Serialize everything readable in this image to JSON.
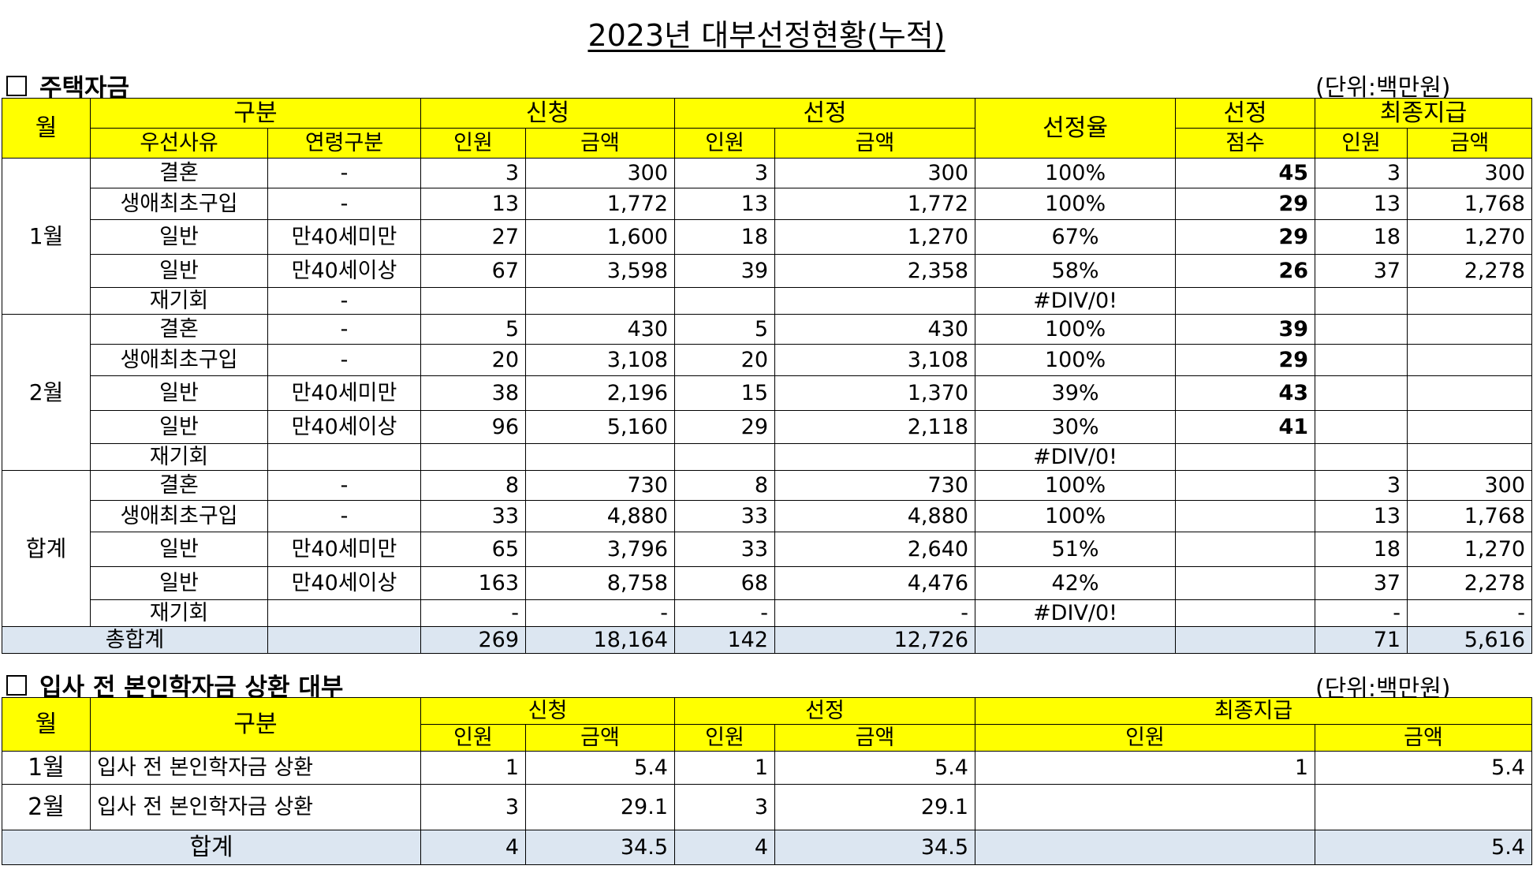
{
  "title": "2023년 대부선정현황(누적)",
  "section1": {
    "heading": "주택자금",
    "unit": "(단위:백만원)",
    "headers": {
      "month": "월",
      "category": "구분",
      "apply": "신청",
      "select": "선정",
      "rate": "선정율",
      "score_top": "선정",
      "final": "최종지급",
      "reason": "우선사유",
      "age": "연령구분",
      "people": "인원",
      "amount": "금액",
      "score_bottom": "점수"
    },
    "groups": [
      {
        "month": "1월",
        "rows": [
          {
            "reason": "결혼",
            "age": "-",
            "ap": "3",
            "aa": "300",
            "sp": "3",
            "sa": "300",
            "rate": "100%",
            "score": "45",
            "fp": "3",
            "fa": "300"
          },
          {
            "reason": "생애최초구입",
            "age": "-",
            "ap": "13",
            "aa": "1,772",
            "sp": "13",
            "sa": "1,772",
            "rate": "100%",
            "score": "29",
            "fp": "13",
            "fa": "1,768"
          },
          {
            "reason": "일반",
            "age": "만40세미만",
            "ap": "27",
            "aa": "1,600",
            "sp": "18",
            "sa": "1,270",
            "rate": "67%",
            "score": "29",
            "fp": "18",
            "fa": "1,270"
          },
          {
            "reason": "일반",
            "age": "만40세이상",
            "ap": "67",
            "aa": "3,598",
            "sp": "39",
            "sa": "2,358",
            "rate": "58%",
            "score": "26",
            "fp": "37",
            "fa": "2,278"
          },
          {
            "reason": "재기회",
            "age": "-",
            "ap": "",
            "aa": "",
            "sp": "",
            "sa": "",
            "rate": "#DIV/0!",
            "score": "",
            "fp": "",
            "fa": ""
          }
        ]
      },
      {
        "month": "2월",
        "rows": [
          {
            "reason": "결혼",
            "age": "-",
            "ap": "5",
            "aa": "430",
            "sp": "5",
            "sa": "430",
            "rate": "100%",
            "score": "39",
            "fp": "",
            "fa": ""
          },
          {
            "reason": "생애최초구입",
            "age": "-",
            "ap": "20",
            "aa": "3,108",
            "sp": "20",
            "sa": "3,108",
            "rate": "100%",
            "score": "29",
            "fp": "",
            "fa": ""
          },
          {
            "reason": "일반",
            "age": "만40세미만",
            "ap": "38",
            "aa": "2,196",
            "sp": "15",
            "sa": "1,370",
            "rate": "39%",
            "score": "43",
            "fp": "",
            "fa": ""
          },
          {
            "reason": "일반",
            "age": "만40세이상",
            "ap": "96",
            "aa": "5,160",
            "sp": "29",
            "sa": "2,118",
            "rate": "30%",
            "score": "41",
            "fp": "",
            "fa": ""
          },
          {
            "reason": "재기회",
            "age": "",
            "ap": "",
            "aa": "",
            "sp": "",
            "sa": "",
            "rate": "#DIV/0!",
            "score": "",
            "fp": "",
            "fa": ""
          }
        ]
      },
      {
        "month": "합계",
        "rows": [
          {
            "reason": "결혼",
            "age": "-",
            "ap": "8",
            "aa": "730",
            "sp": "8",
            "sa": "730",
            "rate": "100%",
            "score": "",
            "fp": "3",
            "fa": "300"
          },
          {
            "reason": "생애최초구입",
            "age": "-",
            "ap": "33",
            "aa": "4,880",
            "sp": "33",
            "sa": "4,880",
            "rate": "100%",
            "score": "",
            "fp": "13",
            "fa": "1,768"
          },
          {
            "reason": "일반",
            "age": "만40세미만",
            "ap": "65",
            "aa": "3,796",
            "sp": "33",
            "sa": "2,640",
            "rate": "51%",
            "score": "",
            "fp": "18",
            "fa": "1,270"
          },
          {
            "reason": "일반",
            "age": "만40세이상",
            "ap": "163",
            "aa": "8,758",
            "sp": "68",
            "sa": "4,476",
            "rate": "42%",
            "score": "",
            "fp": "37",
            "fa": "2,278"
          },
          {
            "reason": "재기회",
            "age": "",
            "ap": "-",
            "aa": "-",
            "sp": "-",
            "sa": "-",
            "rate": "#DIV/0!",
            "score": "",
            "fp": "-",
            "fa": "-"
          }
        ]
      }
    ],
    "total": {
      "label": "총합계",
      "ap": "269",
      "aa": "18,164",
      "sp": "142",
      "sa": "12,726",
      "rate": "",
      "score": "",
      "fp": "71",
      "fa": "5,616"
    }
  },
  "section2": {
    "heading": "입사 전 본인학자금 상환 대부",
    "unit": "(단위:백만원)",
    "headers": {
      "month": "월",
      "category": "구분",
      "apply": "신청",
      "select": "선정",
      "final": "최종지급",
      "people": "인원",
      "amount": "금액"
    },
    "rows": [
      {
        "month": "1월",
        "cat": "입사 전 본인학자금 상환",
        "ap": "1",
        "aa": "5.4",
        "sp": "1",
        "sa": "5.4",
        "fp": "1",
        "fa": "5.4"
      },
      {
        "month": "2월",
        "cat": "입사 전 본인학자금 상환",
        "ap": "3",
        "aa": "29.1",
        "sp": "3",
        "sa": "29.1",
        "fp": "",
        "fa": ""
      }
    ],
    "total": {
      "label": "합계",
      "ap": "4",
      "aa": "34.5",
      "sp": "4",
      "sa": "34.5",
      "fp": "",
      "fa": "5.4"
    }
  }
}
